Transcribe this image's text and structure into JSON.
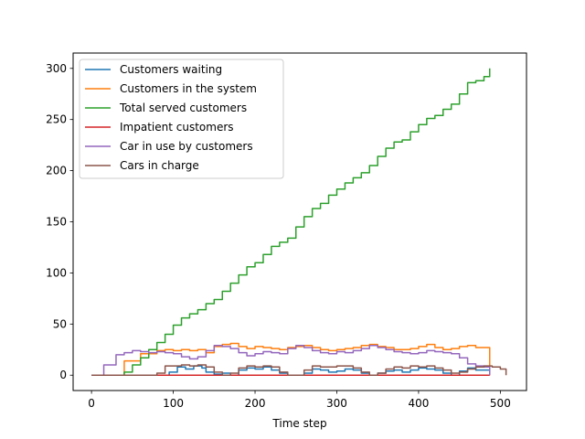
{
  "chart_data": {
    "type": "line",
    "title": "",
    "xlabel": "Time step",
    "ylabel": "",
    "xlim": [
      -22.5,
      532
    ],
    "ylim": [
      -15,
      315
    ],
    "xticks": [
      0,
      100,
      200,
      300,
      400,
      500
    ],
    "yticks": [
      0,
      50,
      100,
      150,
      200,
      250,
      300
    ],
    "grid": false,
    "legend_position": "upper-left",
    "series": [
      {
        "name": "Customers waiting",
        "color": "#1f77b4",
        "x": [
          0,
          40,
          60,
          80,
          95,
          105,
          115,
          125,
          135,
          140,
          150,
          160,
          170,
          180,
          190,
          200,
          210,
          220,
          230,
          240,
          250,
          260,
          270,
          280,
          290,
          300,
          310,
          320,
          330,
          340,
          350,
          360,
          370,
          380,
          390,
          400,
          410,
          420,
          430,
          440,
          450,
          460,
          470,
          487
        ],
        "y": [
          0,
          0,
          0,
          0,
          3,
          8,
          6,
          9,
          7,
          3,
          1,
          2,
          0,
          5,
          7,
          6,
          8,
          5,
          2,
          0,
          0,
          2,
          6,
          5,
          3,
          4,
          6,
          5,
          2,
          0,
          2,
          4,
          5,
          3,
          5,
          7,
          6,
          5,
          2,
          0,
          4,
          7,
          5,
          0
        ]
      },
      {
        "name": "Customers in the system",
        "color": "#ff7f0e",
        "x": [
          0,
          40,
          60,
          80,
          90,
          100,
          110,
          120,
          130,
          140,
          150,
          160,
          170,
          180,
          190,
          200,
          210,
          220,
          230,
          240,
          250,
          260,
          270,
          280,
          290,
          300,
          310,
          320,
          330,
          340,
          350,
          360,
          370,
          380,
          390,
          400,
          410,
          420,
          430,
          440,
          450,
          460,
          470,
          487
        ],
        "y": [
          0,
          14,
          21,
          24,
          25,
          24,
          25,
          24,
          25,
          22,
          28,
          30,
          31,
          28,
          26,
          28,
          27,
          26,
          25,
          27,
          28,
          29,
          27,
          25,
          24,
          25,
          26,
          27,
          29,
          30,
          28,
          27,
          25,
          25,
          26,
          28,
          30,
          27,
          25,
          26,
          28,
          29,
          27,
          0
        ]
      },
      {
        "name": "Total served customers",
        "color": "#2ca02c",
        "x": [
          0,
          30,
          40,
          50,
          60,
          70,
          80,
          90,
          100,
          110,
          120,
          130,
          140,
          150,
          160,
          170,
          180,
          190,
          200,
          210,
          220,
          230,
          240,
          250,
          260,
          270,
          280,
          290,
          300,
          310,
          320,
          330,
          340,
          350,
          360,
          370,
          380,
          390,
          400,
          410,
          420,
          430,
          440,
          450,
          460,
          470,
          480,
          487
        ],
        "y": [
          0,
          0,
          3,
          10,
          17,
          25,
          32,
          40,
          49,
          56,
          60,
          64,
          70,
          74,
          82,
          90,
          98,
          106,
          110,
          118,
          126,
          130,
          134,
          145,
          155,
          163,
          168,
          176,
          182,
          188,
          193,
          198,
          205,
          214,
          222,
          228,
          230,
          238,
          245,
          251,
          254,
          260,
          265,
          275,
          286,
          288,
          292,
          300
        ]
      },
      {
        "name": "Impatient customers",
        "color": "#d62728",
        "x": [
          0,
          100,
          200,
          300,
          400,
          487
        ],
        "y": [
          0,
          0,
          0,
          0,
          0,
          0
        ]
      },
      {
        "name": "Car in use by customers",
        "color": "#9467bd",
        "x": [
          0,
          15,
          30,
          40,
          50,
          60,
          70,
          80,
          90,
          100,
          110,
          120,
          130,
          140,
          150,
          160,
          170,
          180,
          190,
          200,
          210,
          220,
          230,
          240,
          250,
          260,
          270,
          280,
          290,
          300,
          310,
          320,
          330,
          340,
          350,
          360,
          370,
          380,
          390,
          400,
          410,
          420,
          430,
          440,
          450,
          460,
          470,
          480,
          487
        ],
        "y": [
          0,
          10,
          20,
          22,
          24,
          23,
          22,
          23,
          22,
          21,
          18,
          16,
          18,
          24,
          29,
          28,
          26,
          22,
          19,
          21,
          23,
          22,
          21,
          26,
          29,
          27,
          24,
          22,
          21,
          23,
          22,
          24,
          26,
          29,
          27,
          25,
          23,
          22,
          21,
          22,
          24,
          23,
          22,
          21,
          17,
          11,
          9,
          8,
          0
        ]
      },
      {
        "name": "Cars in charge",
        "color": "#8c564b",
        "x": [
          0,
          40,
          70,
          80,
          90,
          100,
          110,
          120,
          130,
          140,
          150,
          160,
          170,
          180,
          190,
          200,
          210,
          220,
          230,
          240,
          250,
          260,
          270,
          280,
          290,
          300,
          310,
          320,
          330,
          340,
          350,
          360,
          370,
          380,
          390,
          400,
          410,
          420,
          430,
          440,
          450,
          460,
          470,
          480,
          490,
          500,
          507
        ],
        "y": [
          0,
          0,
          0,
          2,
          9,
          9,
          10,
          9,
          10,
          8,
          3,
          0,
          2,
          7,
          9,
          8,
          9,
          8,
          3,
          0,
          0,
          5,
          9,
          8,
          8,
          9,
          9,
          7,
          3,
          0,
          2,
          6,
          8,
          7,
          9,
          8,
          9,
          7,
          5,
          2,
          3,
          6,
          8,
          9,
          8,
          6,
          0
        ]
      }
    ]
  }
}
